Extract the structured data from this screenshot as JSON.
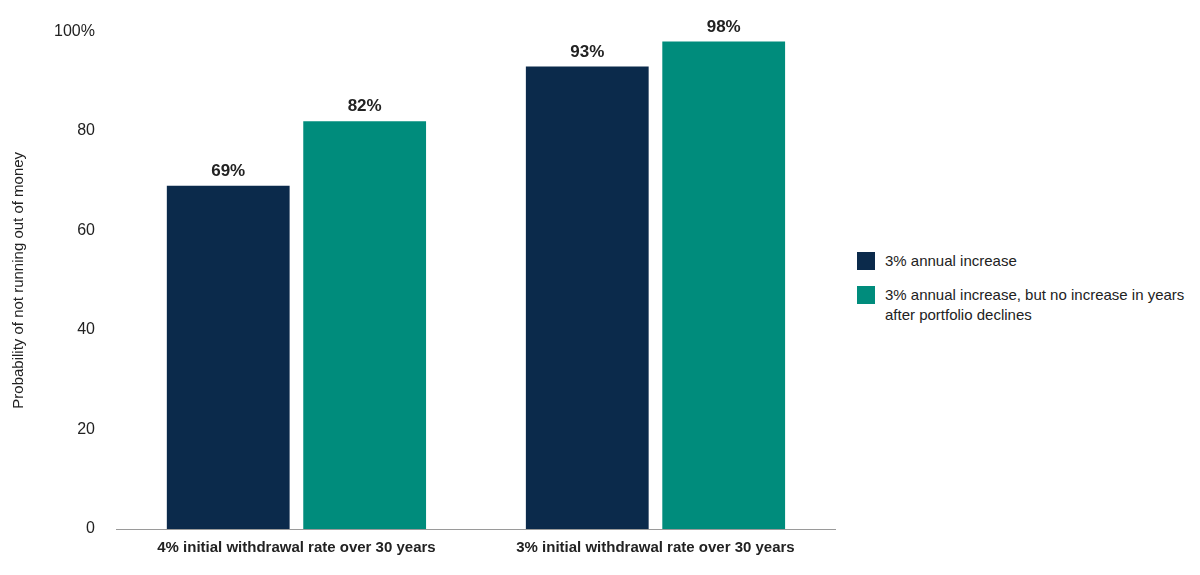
{
  "chart_data": {
    "type": "bar",
    "categories": [
      "4% initial withdrawal rate over 30 years",
      "3% initial withdrawal rate over 30 years"
    ],
    "series": [
      {
        "name": "3% annual increase",
        "color": "#0b2a4b",
        "values": [
          69,
          93
        ],
        "value_labels": [
          "69%",
          "93%"
        ]
      },
      {
        "name": "3% annual increase, but no increase in years after portfolio declines",
        "color": "#008c7c",
        "values": [
          82,
          98
        ],
        "value_labels": [
          "82%",
          "98%"
        ]
      }
    ],
    "y_label": "Probability of not running out of money",
    "ylim": [
      0,
      100
    ],
    "yticks": [
      0,
      20,
      40,
      60,
      80,
      {
        "value": 100,
        "label": "100%"
      }
    ],
    "grid": false,
    "legend": "right",
    "data_labels": true
  }
}
